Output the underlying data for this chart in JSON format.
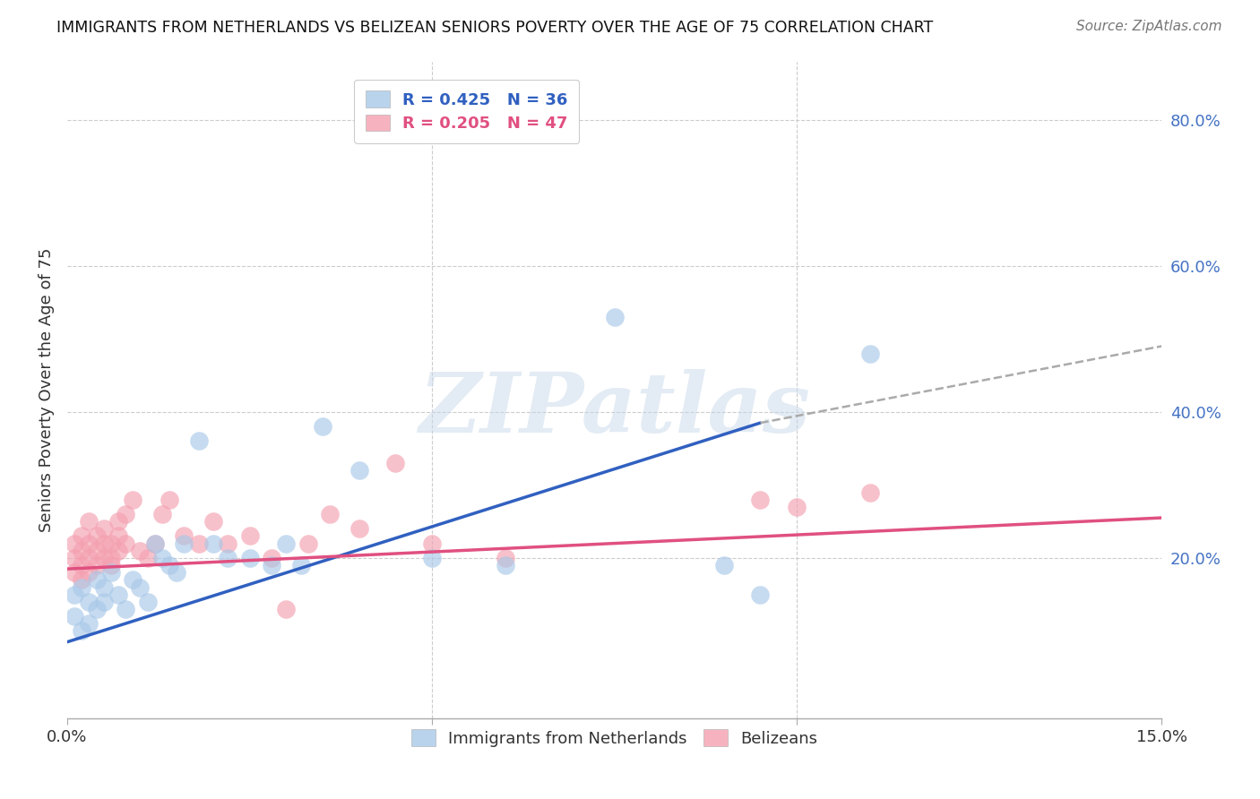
{
  "title": "IMMIGRANTS FROM NETHERLANDS VS BELIZEAN SENIORS POVERTY OVER THE AGE OF 75 CORRELATION CHART",
  "source": "Source: ZipAtlas.com",
  "ylabel": "Seniors Poverty Over the Age of 75",
  "xlim": [
    0.0,
    0.15
  ],
  "ylim": [
    -0.02,
    0.88
  ],
  "xticks": [
    0.0,
    0.05,
    0.1,
    0.15
  ],
  "xticklabels": [
    "0.0%",
    "",
    "",
    "15.0%"
  ],
  "yticks_right": [
    0.2,
    0.4,
    0.6,
    0.8
  ],
  "ytick_right_labels": [
    "20.0%",
    "40.0%",
    "60.0%",
    "80.0%"
  ],
  "legend_r1": "R = 0.425",
  "legend_n1": "N = 36",
  "legend_r2": "R = 0.205",
  "legend_n2": "N = 47",
  "blue_color": "#a8c8e8",
  "pink_color": "#f4a0b0",
  "blue_line_color": "#3060c0",
  "pink_line_color": "#e05080",
  "blue_scatter_x": [
    0.001,
    0.001,
    0.002,
    0.002,
    0.003,
    0.003,
    0.004,
    0.004,
    0.005,
    0.005,
    0.006,
    0.007,
    0.008,
    0.009,
    0.01,
    0.011,
    0.012,
    0.013,
    0.014,
    0.015,
    0.016,
    0.018,
    0.02,
    0.022,
    0.025,
    0.028,
    0.03,
    0.032,
    0.035,
    0.04,
    0.05,
    0.06,
    0.075,
    0.09,
    0.095,
    0.11
  ],
  "blue_scatter_y": [
    0.15,
    0.12,
    0.16,
    0.1,
    0.14,
    0.11,
    0.17,
    0.13,
    0.16,
    0.14,
    0.18,
    0.15,
    0.13,
    0.17,
    0.16,
    0.14,
    0.22,
    0.2,
    0.19,
    0.18,
    0.22,
    0.36,
    0.22,
    0.2,
    0.2,
    0.19,
    0.22,
    0.19,
    0.38,
    0.32,
    0.2,
    0.19,
    0.53,
    0.19,
    0.15,
    0.48
  ],
  "pink_scatter_x": [
    0.001,
    0.001,
    0.001,
    0.002,
    0.002,
    0.002,
    0.002,
    0.003,
    0.003,
    0.003,
    0.003,
    0.004,
    0.004,
    0.004,
    0.005,
    0.005,
    0.005,
    0.006,
    0.006,
    0.006,
    0.007,
    0.007,
    0.007,
    0.008,
    0.008,
    0.009,
    0.01,
    0.011,
    0.012,
    0.013,
    0.014,
    0.016,
    0.018,
    0.02,
    0.022,
    0.025,
    0.028,
    0.03,
    0.033,
    0.036,
    0.04,
    0.045,
    0.05,
    0.06,
    0.095,
    0.1,
    0.11
  ],
  "pink_scatter_y": [
    0.2,
    0.18,
    0.22,
    0.17,
    0.21,
    0.19,
    0.23,
    0.18,
    0.22,
    0.2,
    0.25,
    0.19,
    0.23,
    0.21,
    0.2,
    0.24,
    0.22,
    0.19,
    0.22,
    0.2,
    0.21,
    0.25,
    0.23,
    0.22,
    0.26,
    0.28,
    0.21,
    0.2,
    0.22,
    0.26,
    0.28,
    0.23,
    0.22,
    0.25,
    0.22,
    0.23,
    0.2,
    0.13,
    0.22,
    0.26,
    0.24,
    0.33,
    0.22,
    0.2,
    0.28,
    0.27,
    0.29
  ],
  "blue_trend_x": [
    0.0,
    0.095
  ],
  "blue_trend_y": [
    0.085,
    0.385
  ],
  "pink_trend_x": [
    0.0,
    0.15
  ],
  "pink_trend_y": [
    0.185,
    0.255
  ],
  "dashed_trend_x": [
    0.095,
    0.15
  ],
  "dashed_trend_y": [
    0.385,
    0.49
  ],
  "watermark": "ZIPatlas",
  "background_color": "#ffffff",
  "grid_color": "#cccccc"
}
